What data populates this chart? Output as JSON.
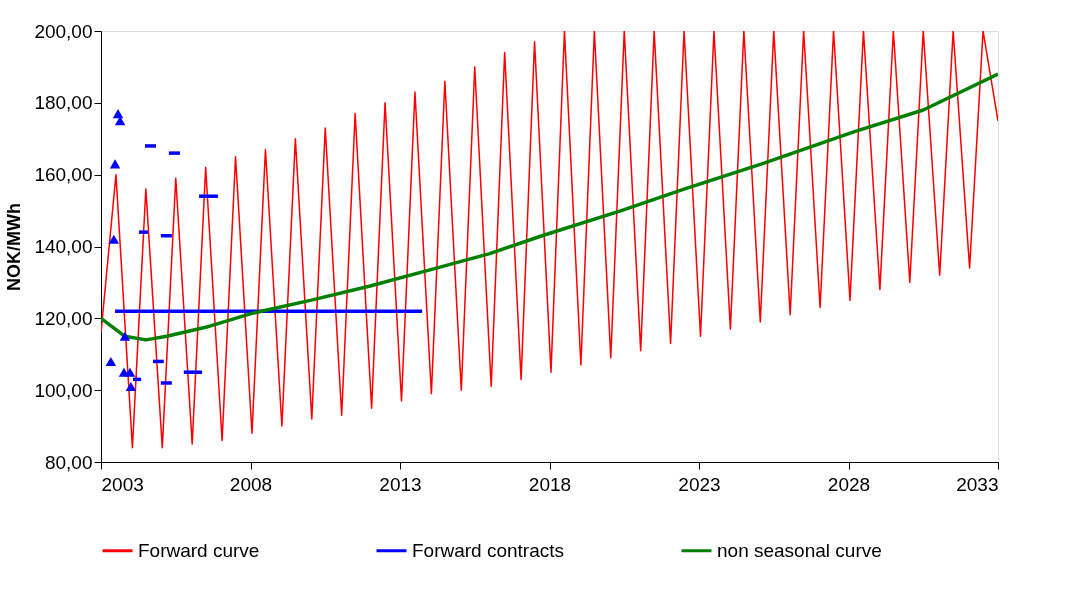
{
  "chart_data": {
    "type": "line",
    "ylabel": "NOK/MWh",
    "xlim": [
      2003,
      2033
    ],
    "xticks": [
      2003,
      2008,
      2013,
      2018,
      2023,
      2028,
      2033
    ],
    "ylim": [
      80,
      200
    ],
    "yticks": [
      {
        "value": 80,
        "label": "80,00"
      },
      {
        "value": 100,
        "label": "100,00"
      },
      {
        "value": 120,
        "label": "120,00"
      },
      {
        "value": 140,
        "label": "140,00"
      },
      {
        "value": 160,
        "label": "160,00"
      },
      {
        "value": 180,
        "label": "180,00"
      },
      {
        "value": 200,
        "label": "200,00"
      }
    ],
    "grid": false,
    "legend": "bottom",
    "series": [
      {
        "name": "Forward curve",
        "color": "#ff0000",
        "line_style": "solid",
        "x": [
          2003.0,
          2003.5,
          2004.05,
          2004.5,
          2005.05,
          2005.5,
          2006.05,
          2006.5,
          2007.05,
          2007.5,
          2008.05,
          2008.5,
          2009.05,
          2009.5,
          2010.05,
          2010.5,
          2011.05,
          2011.5,
          2012.05,
          2012.5,
          2013.05,
          2013.5,
          2014.05,
          2014.5,
          2015.05,
          2015.5,
          2016.05,
          2016.5,
          2017.05,
          2017.5,
          2018.05,
          2018.5,
          2019.05,
          2019.5,
          2020.05,
          2020.5,
          2021.05,
          2021.5,
          2022.05,
          2022.5,
          2023.05,
          2023.5,
          2024.05,
          2024.5,
          2025.05,
          2025.5,
          2026.05,
          2026.5,
          2027.05,
          2027.5,
          2028.05,
          2028.5,
          2029.05,
          2029.5,
          2030.05,
          2030.5,
          2031.05,
          2031.5,
          2032.05,
          2032.5,
          2033.0
        ],
        "values": [
          116,
          160,
          84,
          156,
          84,
          159,
          85,
          162,
          86,
          165,
          88,
          167,
          90,
          170,
          92,
          173,
          93,
          177,
          95,
          180,
          97,
          183,
          99,
          186,
          100,
          190,
          101,
          194,
          103,
          197,
          105,
          200,
          107,
          200,
          109,
          200,
          111,
          200,
          113,
          200,
          115,
          200,
          117,
          200,
          119,
          200,
          121,
          200,
          123,
          200,
          125,
          200,
          128,
          200,
          130,
          200,
          132,
          200,
          134,
          200,
          175
        ]
      },
      {
        "name": "Forward contracts",
        "color": "#0000ff",
        "line_style": "solid",
        "x": [
          2003.47,
          2013.74
        ],
        "values": [
          122,
          122
        ]
      },
      {
        "type": "line",
        "color": "#0000ff",
        "x": [
          2004.47,
          2004.84
        ],
        "values": [
          168,
          168
        ]
      },
      {
        "type": "line",
        "color": "#0000ff",
        "x": [
          2005.27,
          2005.64
        ],
        "values": [
          166,
          166
        ]
      },
      {
        "type": "line",
        "color": "#0000ff",
        "x": [
          2006.28,
          2006.91
        ],
        "values": [
          154,
          154
        ]
      },
      {
        "type": "line",
        "color": "#0000ff",
        "x": [
          2004.27,
          2004.57
        ],
        "values": [
          144,
          144
        ]
      },
      {
        "type": "line",
        "color": "#0000ff",
        "x": [
          2005.0,
          2005.37
        ],
        "values": [
          143,
          143
        ]
      },
      {
        "type": "line",
        "color": "#0000ff",
        "x": [
          2004.74,
          2005.1
        ],
        "values": [
          108,
          108
        ]
      },
      {
        "type": "line",
        "color": "#0000ff",
        "x": [
          2005.0,
          2005.37
        ],
        "values": [
          102,
          102
        ]
      },
      {
        "type": "line",
        "color": "#0000ff",
        "x": [
          2005.77,
          2006.38
        ],
        "values": [
          105,
          105
        ]
      },
      {
        "type": "line",
        "color": "#0000ff",
        "x": [
          2004.07,
          2004.34
        ],
        "values": [
          103,
          103
        ]
      },
      {
        "name": "non seasonal curve",
        "color": "#008000",
        "line_style": "solid",
        "x": [
          2003.0,
          2003.8,
          2004.5,
          2005.2,
          2006.5,
          2008.1,
          2010.0,
          2012.0,
          2014.0,
          2016.0,
          2017.75,
          2020.4,
          2022.5,
          2025.1,
          2028.2,
          2030.5,
          2033.0
        ],
        "values": [
          120,
          115,
          114,
          115,
          117.5,
          121.5,
          125,
          129,
          133.5,
          138,
          143,
          150,
          156,
          163,
          172,
          178,
          188
        ]
      },
      {
        "type": "scatter",
        "color": "#0000ff",
        "marker": "triangle",
        "x": [
          2003.33,
          2003.43,
          2003.47,
          2003.57,
          2003.64,
          2003.8,
          2003.77,
          2003.97,
          2004.0
        ],
        "values": [
          108,
          142,
          163,
          177,
          175,
          115,
          105,
          105,
          101
        ]
      }
    ]
  }
}
